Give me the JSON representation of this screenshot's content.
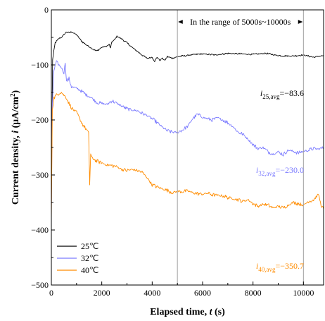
{
  "chart_data": {
    "type": "line",
    "xlabel_text": "Elapsed time, ",
    "xlabel_var": "t",
    "xlabel_unit": " (s)",
    "ylabel_text": "Current density, ",
    "ylabel_var": "i",
    "ylabel_unit_open": " (μA/cm",
    "ylabel_unit_sup": "2",
    "ylabel_unit_close": ")",
    "xlim": [
      0,
      10800
    ],
    "ylim": [
      -500,
      0
    ],
    "x_ticks": [
      0,
      2000,
      4000,
      6000,
      8000,
      10000
    ],
    "y_ticks": [
      0,
      -100,
      -200,
      -300,
      -400,
      -500
    ],
    "x_tick_labels": [
      "0",
      "2000",
      "4000",
      "6000",
      "8000",
      "10000"
    ],
    "y_tick_labels": [
      "0",
      "−100",
      "−200",
      "−300",
      "−400",
      "−500"
    ],
    "range_annotation": {
      "text": "In the range of 5000s~10000s",
      "x_start": 5000,
      "x_end": 10000
    },
    "legend": {
      "position": "bottom-left",
      "entries": [
        "25℃",
        "32℃",
        "40℃"
      ]
    },
    "series": [
      {
        "name": "25℃",
        "color": "#000000",
        "avg_label": {
          "var": "i",
          "sub": "25,avg",
          "value": "=−83.6"
        },
        "x": [
          0,
          50,
          150,
          300,
          400,
          500,
          600,
          700,
          800,
          1000,
          1200,
          1400,
          1600,
          1800,
          2000,
          2200,
          2300,
          2350,
          2400,
          2500,
          2600,
          2800,
          3000,
          3200,
          3400,
          3600,
          3800,
          4000,
          4100,
          4200,
          4300,
          4400,
          4500,
          4600,
          4800,
          5000,
          5200,
          5500,
          6000,
          6500,
          7000,
          7500,
          8000,
          8500,
          9000,
          9500,
          10000,
          10400,
          10800
        ],
        "y": [
          -335,
          -90,
          -60,
          -52,
          -50,
          -45,
          -40,
          -42,
          -40,
          -45,
          -57,
          -64,
          -70,
          -75,
          -68,
          -66,
          -63,
          -70,
          -58,
          -55,
          -48,
          -53,
          -60,
          -68,
          -75,
          -82,
          -88,
          -86,
          -93,
          -86,
          -92,
          -88,
          -92,
          -85,
          -88,
          -85,
          -84,
          -82,
          -80,
          -82,
          -79,
          -80,
          -81,
          -79,
          -83,
          -84,
          -82,
          -86,
          -83
        ]
      },
      {
        "name": "32℃",
        "color": "#7b7bff",
        "avg_label": {
          "var": "i",
          "sub": "32,avg",
          "value": "=−230.0"
        },
        "x": [
          0,
          40,
          100,
          200,
          300,
          400,
          500,
          550,
          600,
          700,
          800,
          1000,
          1200,
          1400,
          1600,
          1800,
          2000,
          2200,
          2400,
          2600,
          2800,
          3000,
          3200,
          3400,
          3600,
          3800,
          4000,
          4200,
          4400,
          4600,
          4800,
          5000,
          5200,
          5400,
          5600,
          5800,
          6000,
          6200,
          6400,
          6600,
          6800,
          7000,
          7200,
          7400,
          7600,
          7800,
          8000,
          8200,
          8400,
          8600,
          8800,
          9000,
          9200,
          9400,
          9600,
          9800,
          10000,
          10200,
          10400,
          10600,
          10800
        ],
        "y": [
          -370,
          -175,
          -110,
          -95,
          -100,
          -105,
          -115,
          -95,
          -130,
          -125,
          -140,
          -142,
          -148,
          -155,
          -160,
          -168,
          -170,
          -172,
          -165,
          -170,
          -175,
          -180,
          -182,
          -183,
          -188,
          -192,
          -198,
          -205,
          -213,
          -220,
          -222,
          -223,
          -218,
          -212,
          -198,
          -190,
          -195,
          -198,
          -200,
          -196,
          -200,
          -205,
          -212,
          -222,
          -226,
          -235,
          -245,
          -252,
          -250,
          -258,
          -262,
          -258,
          -263,
          -255,
          -257,
          -260,
          -257,
          -255,
          -252,
          -253,
          -250
        ]
      },
      {
        "name": "40℃",
        "color": "#ff8c00",
        "avg_label": {
          "var": "i",
          "sub": "40,avg",
          "value": "=−350.7"
        },
        "x": [
          0,
          40,
          100,
          200,
          300,
          400,
          500,
          600,
          700,
          800,
          900,
          1000,
          1100,
          1200,
          1300,
          1400,
          1480,
          1520,
          1560,
          1600,
          1700,
          1800,
          2000,
          2200,
          2400,
          2600,
          2800,
          3000,
          3200,
          3400,
          3600,
          3800,
          4000,
          4200,
          4400,
          4600,
          4800,
          5000,
          5200,
          5400,
          5600,
          5800,
          6000,
          6200,
          6400,
          6600,
          6800,
          7000,
          7200,
          7400,
          7600,
          7800,
          8000,
          8200,
          8400,
          8600,
          8800,
          9000,
          9200,
          9400,
          9600,
          9800,
          10000,
          10200,
          10400,
          10600,
          10700,
          10800
        ],
        "y": [
          -385,
          -180,
          -160,
          -155,
          -152,
          -150,
          -155,
          -160,
          -170,
          -178,
          -183,
          -185,
          -195,
          -205,
          -212,
          -218,
          -224,
          -318,
          -262,
          -268,
          -272,
          -275,
          -278,
          -282,
          -283,
          -285,
          -290,
          -292,
          -290,
          -292,
          -295,
          -305,
          -318,
          -322,
          -325,
          -328,
          -332,
          -330,
          -330,
          -329,
          -332,
          -334,
          -335,
          -333,
          -336,
          -337,
          -338,
          -341,
          -343,
          -345,
          -348,
          -345,
          -352,
          -357,
          -353,
          -355,
          -360,
          -357,
          -360,
          -355,
          -350,
          -352,
          -355,
          -348,
          -345,
          -335,
          -355,
          -362
        ]
      }
    ]
  }
}
